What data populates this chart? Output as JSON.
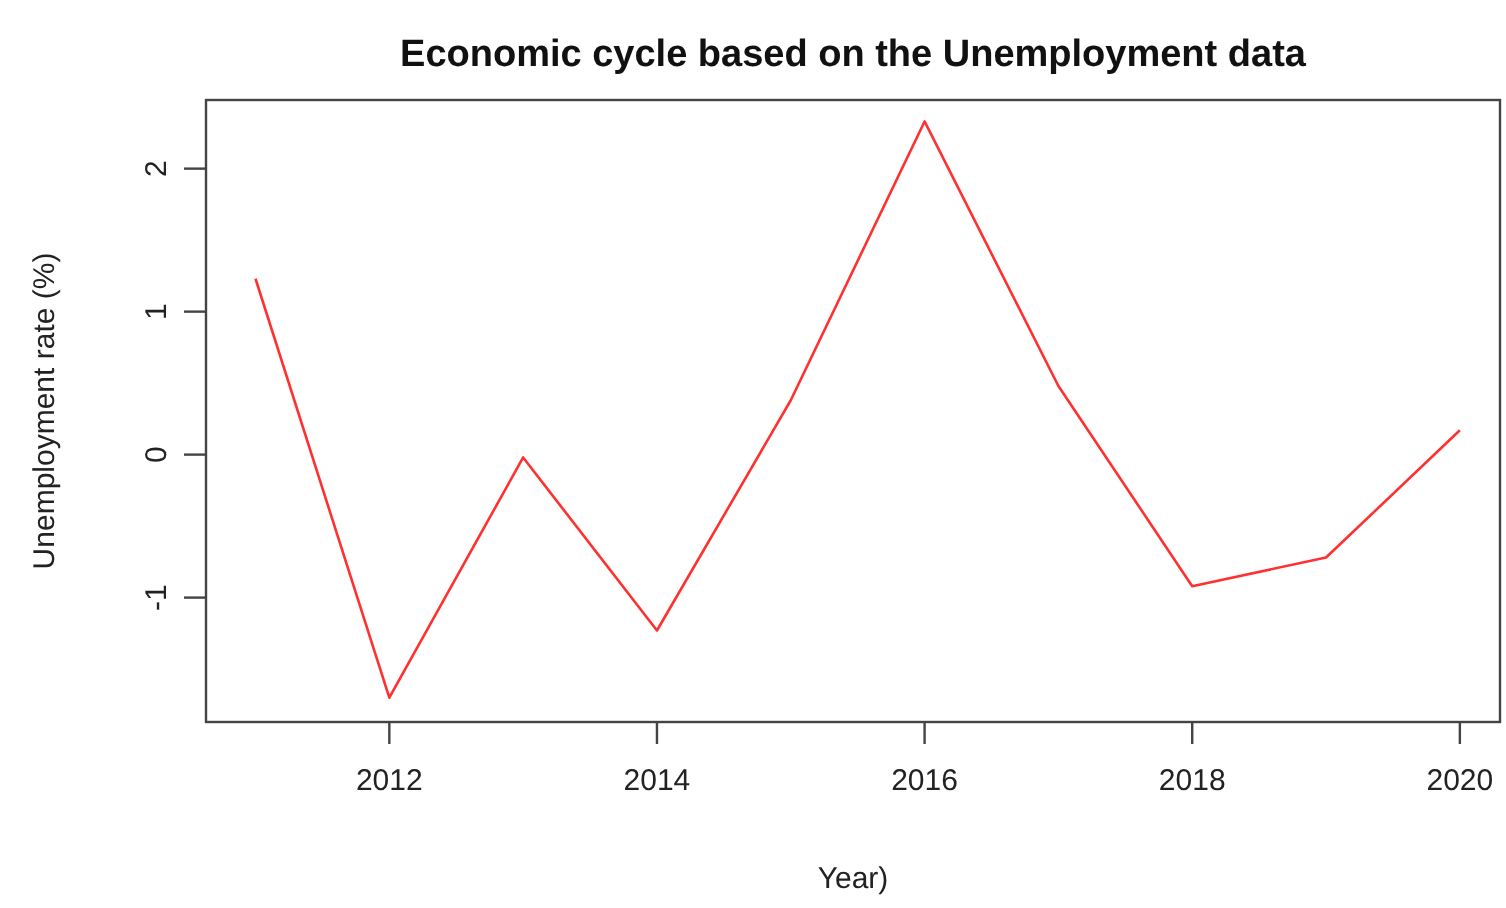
{
  "chart_data": {
    "type": "line",
    "title": "Economic cycle based on the Unemployment data",
    "xlabel": "Year)",
    "ylabel": "Unemployment rate (%)",
    "x": [
      2011,
      2012,
      2013,
      2014,
      2015,
      2016,
      2017,
      2018,
      2019,
      2020
    ],
    "series": [
      {
        "color": "#ff3030",
        "values": [
          1.23,
          -1.7,
          -0.02,
          -1.23,
          0.38,
          2.33,
          0.48,
          -0.92,
          -0.72,
          0.17
        ]
      }
    ],
    "xlim": [
      2010.63,
      2020.3
    ],
    "xticks": [
      2012,
      2014,
      2016,
      2018,
      2020
    ],
    "ylim": [
      -1.87,
      2.48
    ],
    "yticks": [
      -1,
      0,
      1,
      2
    ],
    "grid": false,
    "marker": "none",
    "line_style": "solid"
  }
}
